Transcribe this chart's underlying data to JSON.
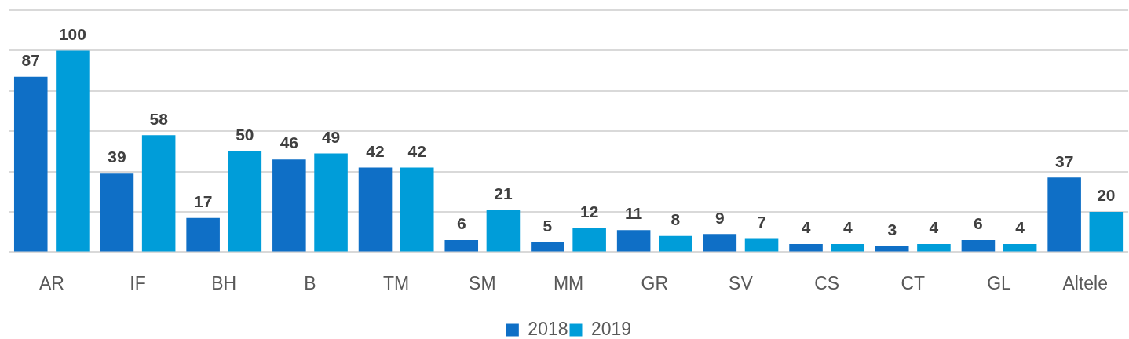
{
  "chart_data": {
    "type": "bar",
    "categories": [
      "AR",
      "IF",
      "BH",
      "B",
      "TM",
      "SM",
      "MM",
      "GR",
      "SV",
      "CS",
      "CT",
      "GL",
      "Altele"
    ],
    "series": [
      {
        "name": "2018",
        "color": "#0f6fc6",
        "values": [
          87,
          39,
          17,
          46,
          42,
          6,
          5,
          11,
          9,
          4,
          3,
          6,
          37
        ]
      },
      {
        "name": "2019",
        "color": "#009dd9",
        "values": [
          100,
          58,
          50,
          49,
          42,
          21,
          12,
          8,
          7,
          4,
          4,
          4,
          20
        ]
      }
    ],
    "ylim": [
      0,
      120
    ],
    "yticks": [
      {
        "value": 0,
        "label": null
      },
      {
        "value": 20,
        "label": null
      },
      {
        "value": 40,
        "label": null
      },
      {
        "value": 60,
        "label": null
      },
      {
        "value": 80,
        "label": null
      },
      {
        "value": 100,
        "label": null
      },
      {
        "value": 120,
        "label": null
      }
    ],
    "tick_labels": "x",
    "grid": "y",
    "legend": "bottom",
    "data_labels": true
  }
}
